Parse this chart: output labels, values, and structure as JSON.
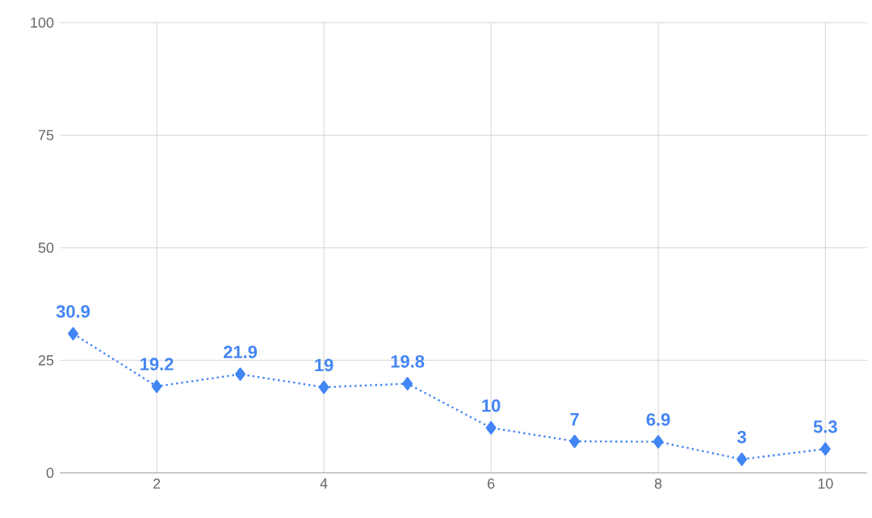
{
  "chart_data": {
    "type": "line",
    "x": [
      1,
      2,
      3,
      4,
      5,
      6,
      7,
      8,
      9,
      10
    ],
    "values": [
      30.9,
      19.2,
      21.9,
      19,
      19.8,
      10,
      7,
      6.9,
      3,
      5.3
    ],
    "color": "#4285f4",
    "marker": "diamond",
    "line_style": "dotted",
    "data_labels": true,
    "grid": true,
    "xlim": [
      0.84,
      10.5
    ],
    "xticks": [
      2,
      4,
      6,
      8,
      10
    ],
    "ylim": [
      0,
      100
    ],
    "yticks": [
      0,
      25,
      50,
      75,
      100
    ]
  }
}
